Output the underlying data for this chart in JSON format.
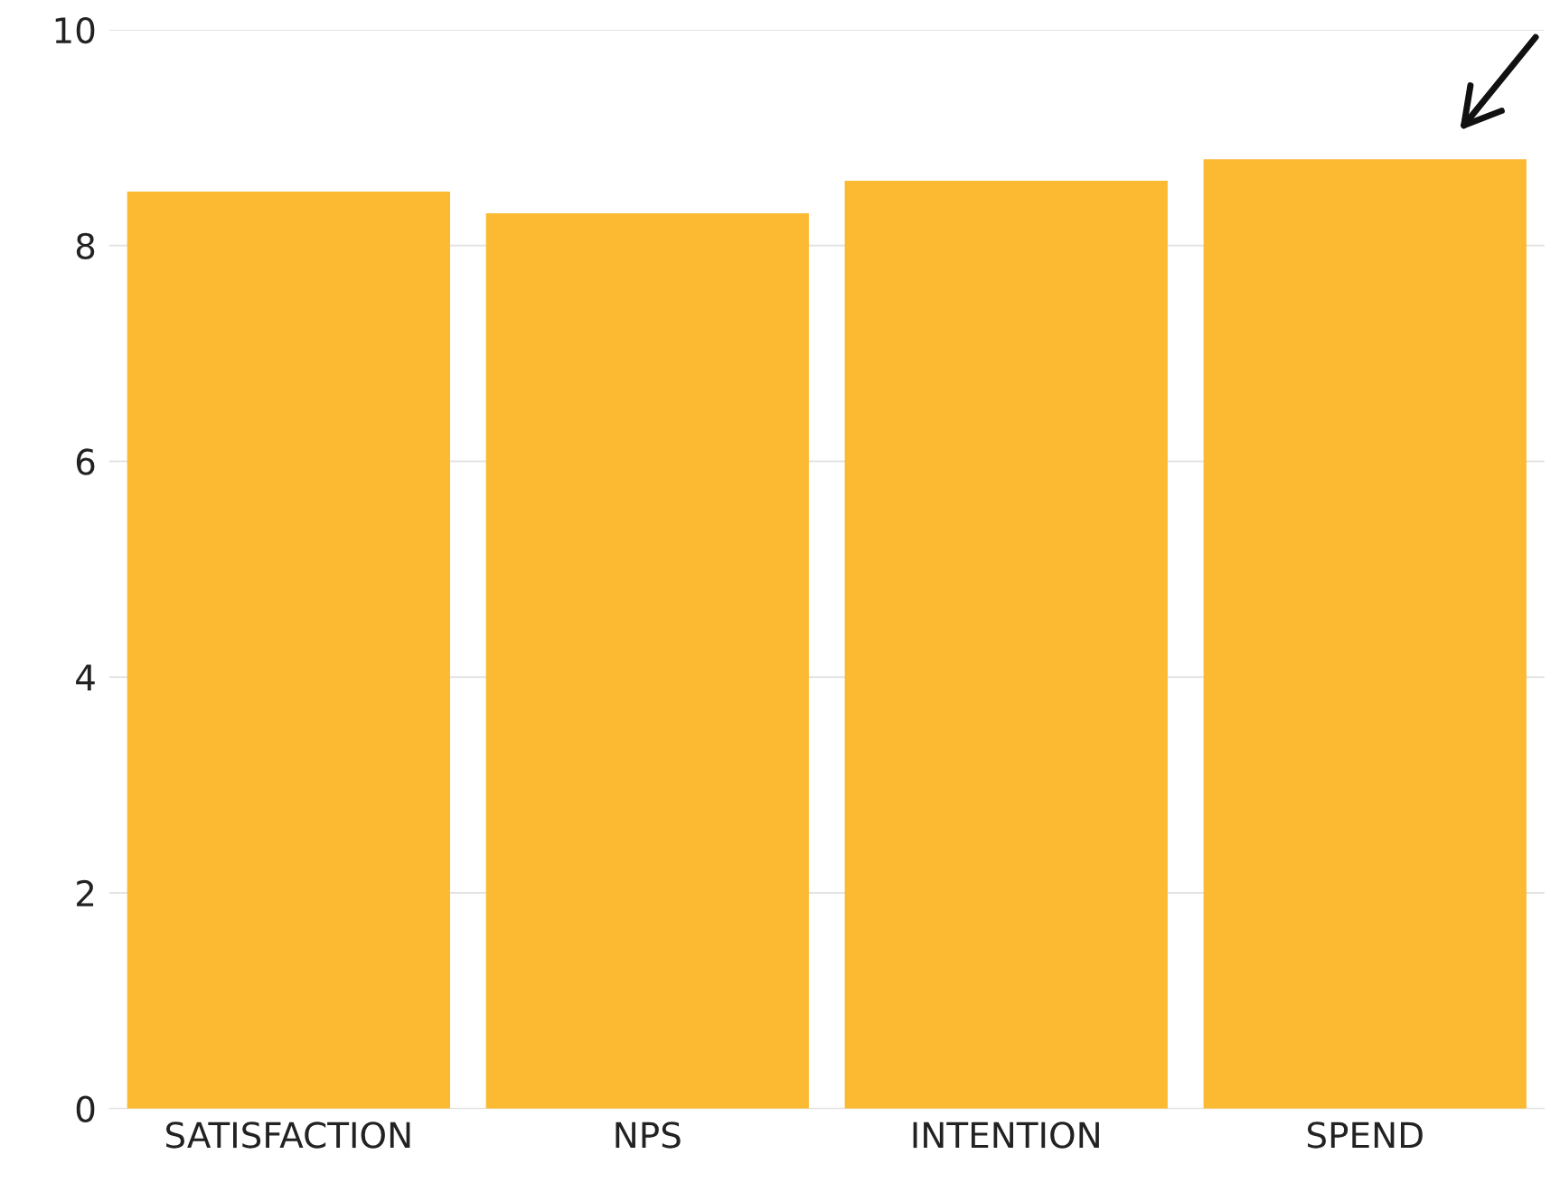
{
  "chart_data": {
    "type": "bar",
    "categories": [
      "SATISFACTION",
      "NPS",
      "INTENTION",
      "SPEND"
    ],
    "values": [
      8.5,
      8.3,
      8.6,
      8.8
    ],
    "color": "#fcba32",
    "ylim": [
      0,
      10
    ],
    "yticks": [
      0,
      2,
      4,
      6,
      8,
      10
    ],
    "grid": "y",
    "legend": false
  }
}
